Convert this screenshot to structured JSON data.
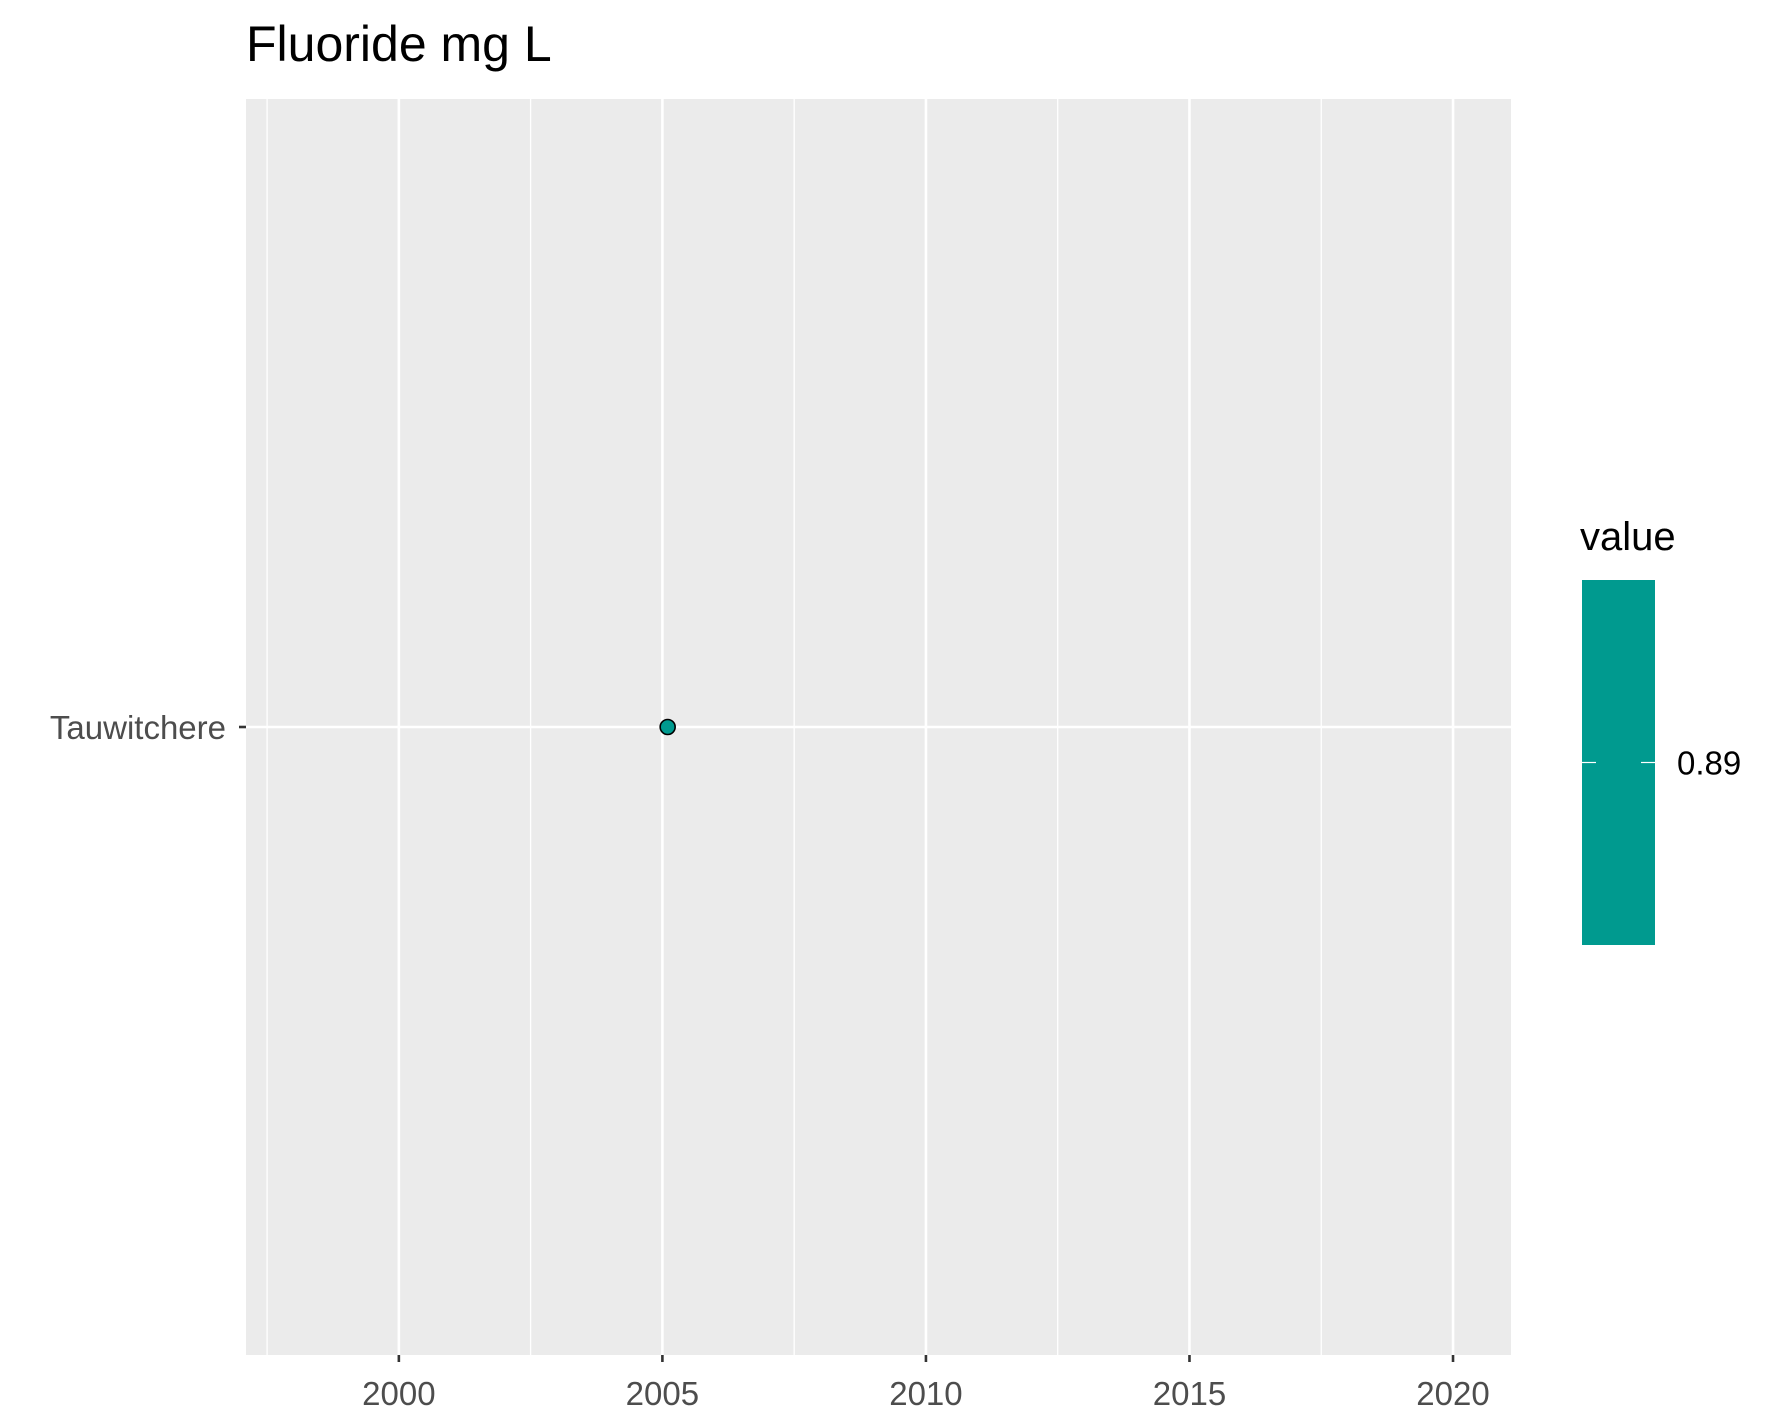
{
  "chart_data": {
    "type": "scatter",
    "title": "Fluoride mg L",
    "xlabel": "",
    "ylabel": "",
    "x_ticks": [
      2000,
      2005,
      2010,
      2015,
      2020
    ],
    "x_tick_labels": [
      "2000",
      "2005",
      "2010",
      "2015",
      "2020"
    ],
    "xlim": [
      1997.1,
      2021.1
    ],
    "y_categories": [
      "Tauwitchere"
    ],
    "points": [
      {
        "site": "Tauwitchere",
        "x": 2005.1,
        "value": 0.89
      }
    ],
    "legend": {
      "title": "value",
      "labels": [
        "0.89"
      ],
      "position": "right",
      "type": "colorbar"
    },
    "point_color": "#009a8f",
    "panel_background": "#ebebeb",
    "grid": true
  }
}
